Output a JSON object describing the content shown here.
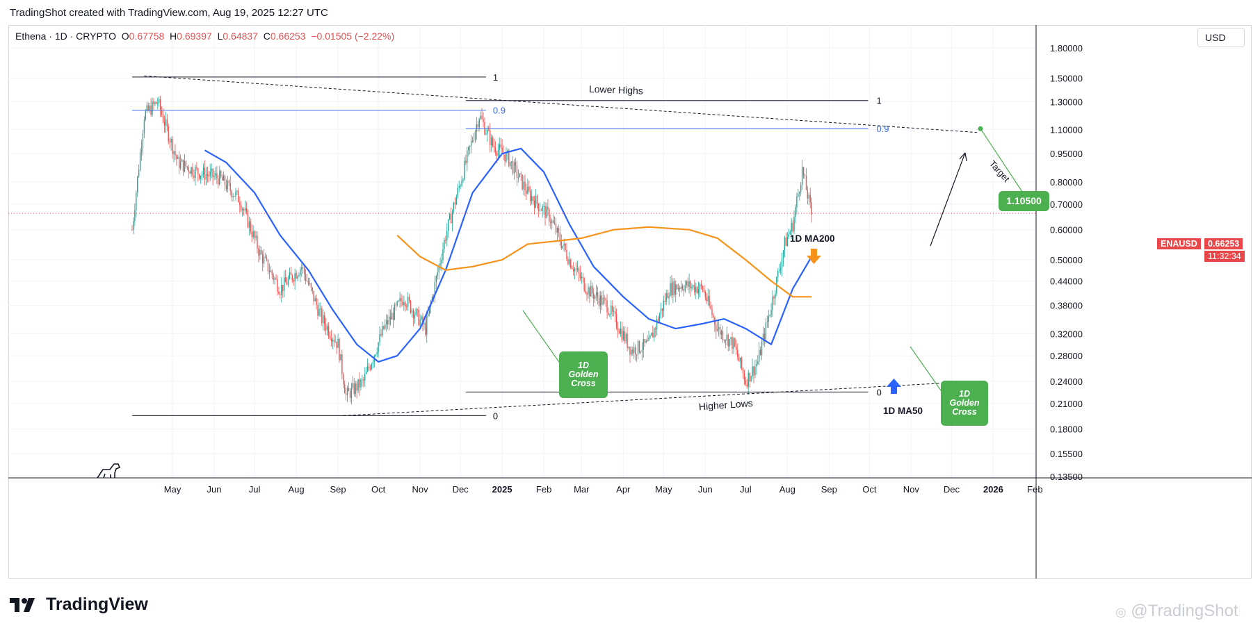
{
  "header": {
    "caption": "TradingShot created with TradingView.com, Aug 19, 2025 12:27 UTC"
  },
  "legend": {
    "symbol": "Ethena · 1D · CRYPTO",
    "o_label": "O",
    "o_value": "0.67758",
    "h_label": "H",
    "h_value": "0.69397",
    "l_label": "L",
    "l_value": "0.64837",
    "c_label": "C",
    "c_value": "0.66253",
    "change": "−0.01505 (−2.22%)"
  },
  "toolbar": {
    "currency": "USD"
  },
  "price_tag": {
    "ticker": "ENAUSD",
    "price": "0.66253",
    "countdown": "11:32:34"
  },
  "brand": {
    "name": "TradingView"
  },
  "watermark": {
    "text": "@TradingShot"
  },
  "colors": {
    "up": "#26a69a",
    "down": "#ef5350",
    "ma50": "#2962ff",
    "ma200": "#f7931a",
    "annotation_green": "#4caf50",
    "fib_blue": "#3d6ee8"
  },
  "annotations": {
    "lower_highs": "Lower Highs",
    "higher_lows": "Higher Lows",
    "ma200_label": "1D MA200",
    "ma50_label": "1D MA50",
    "golden_cross_1": [
      "1D",
      "Golden",
      "Cross"
    ],
    "golden_cross_2": [
      "1D",
      "Golden",
      "Cross"
    ],
    "target_label": "Target",
    "target_value": "1.10500",
    "fib_left_top": "1",
    "fib_left_mid": "0.9",
    "fib_left_bottom": "0",
    "fib_right_top": "1",
    "fib_right_mid": "0.9",
    "fib_right_bottom": "0"
  },
  "chart_data": {
    "type": "line",
    "title": "Ethena · 1D · CRYPTO",
    "xlabel": "",
    "ylabel": "",
    "scale": "log",
    "ylim": [
      0.13,
      1.9
    ],
    "y_ticks": [
      "1.80000",
      "1.50000",
      "1.30000",
      "1.10000",
      "0.95000",
      "0.80000",
      "0.70000",
      "0.60000",
      "0.50000",
      "0.44000",
      "0.38000",
      "0.32000",
      "0.28000",
      "0.24000",
      "0.21000",
      "0.18000",
      "0.15500",
      "0.13500"
    ],
    "x_ticks": [
      "May",
      "Jun",
      "Jul",
      "Aug",
      "Sep",
      "Oct",
      "Nov",
      "Dec",
      "2025",
      "Feb",
      "Mar",
      "Apr",
      "May",
      "Jun",
      "Jul",
      "Aug",
      "Sep",
      "Oct",
      "Nov",
      "Dec",
      "2026",
      "Feb"
    ],
    "bold_x_ticks": [
      "2025",
      "2026"
    ],
    "series": [
      {
        "name": "ENAUSD",
        "x": [
          "2024-04-01",
          "2024-04-10",
          "2024-04-20",
          "2024-05-05",
          "2024-05-20",
          "2024-06-05",
          "2024-06-20",
          "2024-07-05",
          "2024-07-20",
          "2024-08-05",
          "2024-08-20",
          "2024-09-01",
          "2024-09-07",
          "2024-09-20",
          "2024-10-05",
          "2024-10-20",
          "2024-11-05",
          "2024-11-20",
          "2024-12-05",
          "2024-12-15",
          "2024-12-25",
          "2025-01-05",
          "2025-01-20",
          "2025-02-05",
          "2025-02-20",
          "2025-03-05",
          "2025-03-20",
          "2025-04-07",
          "2025-04-20",
          "2025-05-05",
          "2025-05-15",
          "2025-05-30",
          "2025-06-10",
          "2025-06-22",
          "2025-07-01",
          "2025-07-10",
          "2025-07-20",
          "2025-07-30",
          "2025-08-05",
          "2025-08-12",
          "2025-08-19"
        ],
        "values": [
          0.6,
          1.2,
          1.3,
          0.9,
          0.85,
          0.82,
          0.72,
          0.52,
          0.42,
          0.48,
          0.35,
          0.3,
          0.22,
          0.24,
          0.33,
          0.4,
          0.33,
          0.58,
          0.9,
          1.2,
          1.0,
          0.93,
          0.75,
          0.65,
          0.5,
          0.42,
          0.38,
          0.29,
          0.3,
          0.42,
          0.43,
          0.42,
          0.33,
          0.3,
          0.24,
          0.27,
          0.38,
          0.55,
          0.62,
          0.86,
          0.66
        ]
      },
      {
        "name": "1D MA50",
        "x": [
          "2024-05-25",
          "2024-06-10",
          "2024-07-01",
          "2024-07-20",
          "2024-08-10",
          "2024-08-28",
          "2024-09-15",
          "2024-10-01",
          "2024-10-15",
          "2024-11-01",
          "2024-11-20",
          "2024-12-10",
          "2025-01-01",
          "2025-01-15",
          "2025-02-01",
          "2025-02-20",
          "2025-03-10",
          "2025-04-01",
          "2025-04-20",
          "2025-05-10",
          "2025-05-30",
          "2025-06-15",
          "2025-07-01",
          "2025-07-20",
          "2025-08-05",
          "2025-08-19"
        ],
        "values": [
          0.97,
          0.9,
          0.75,
          0.58,
          0.47,
          0.37,
          0.3,
          0.27,
          0.28,
          0.33,
          0.47,
          0.75,
          0.95,
          0.98,
          0.85,
          0.62,
          0.48,
          0.4,
          0.35,
          0.33,
          0.34,
          0.35,
          0.33,
          0.3,
          0.42,
          0.51
        ]
      },
      {
        "name": "1D MA200",
        "x": [
          "2024-10-15",
          "2024-11-01",
          "2024-11-20",
          "2024-12-10",
          "2025-01-01",
          "2025-01-20",
          "2025-02-10",
          "2025-03-01",
          "2025-03-25",
          "2025-04-20",
          "2025-05-20",
          "2025-06-10",
          "2025-07-01",
          "2025-07-20",
          "2025-08-05",
          "2025-08-19"
        ],
        "values": [
          0.58,
          0.51,
          0.47,
          0.48,
          0.5,
          0.55,
          0.56,
          0.57,
          0.6,
          0.61,
          0.6,
          0.57,
          0.5,
          0.44,
          0.4,
          0.4
        ]
      }
    ]
  }
}
